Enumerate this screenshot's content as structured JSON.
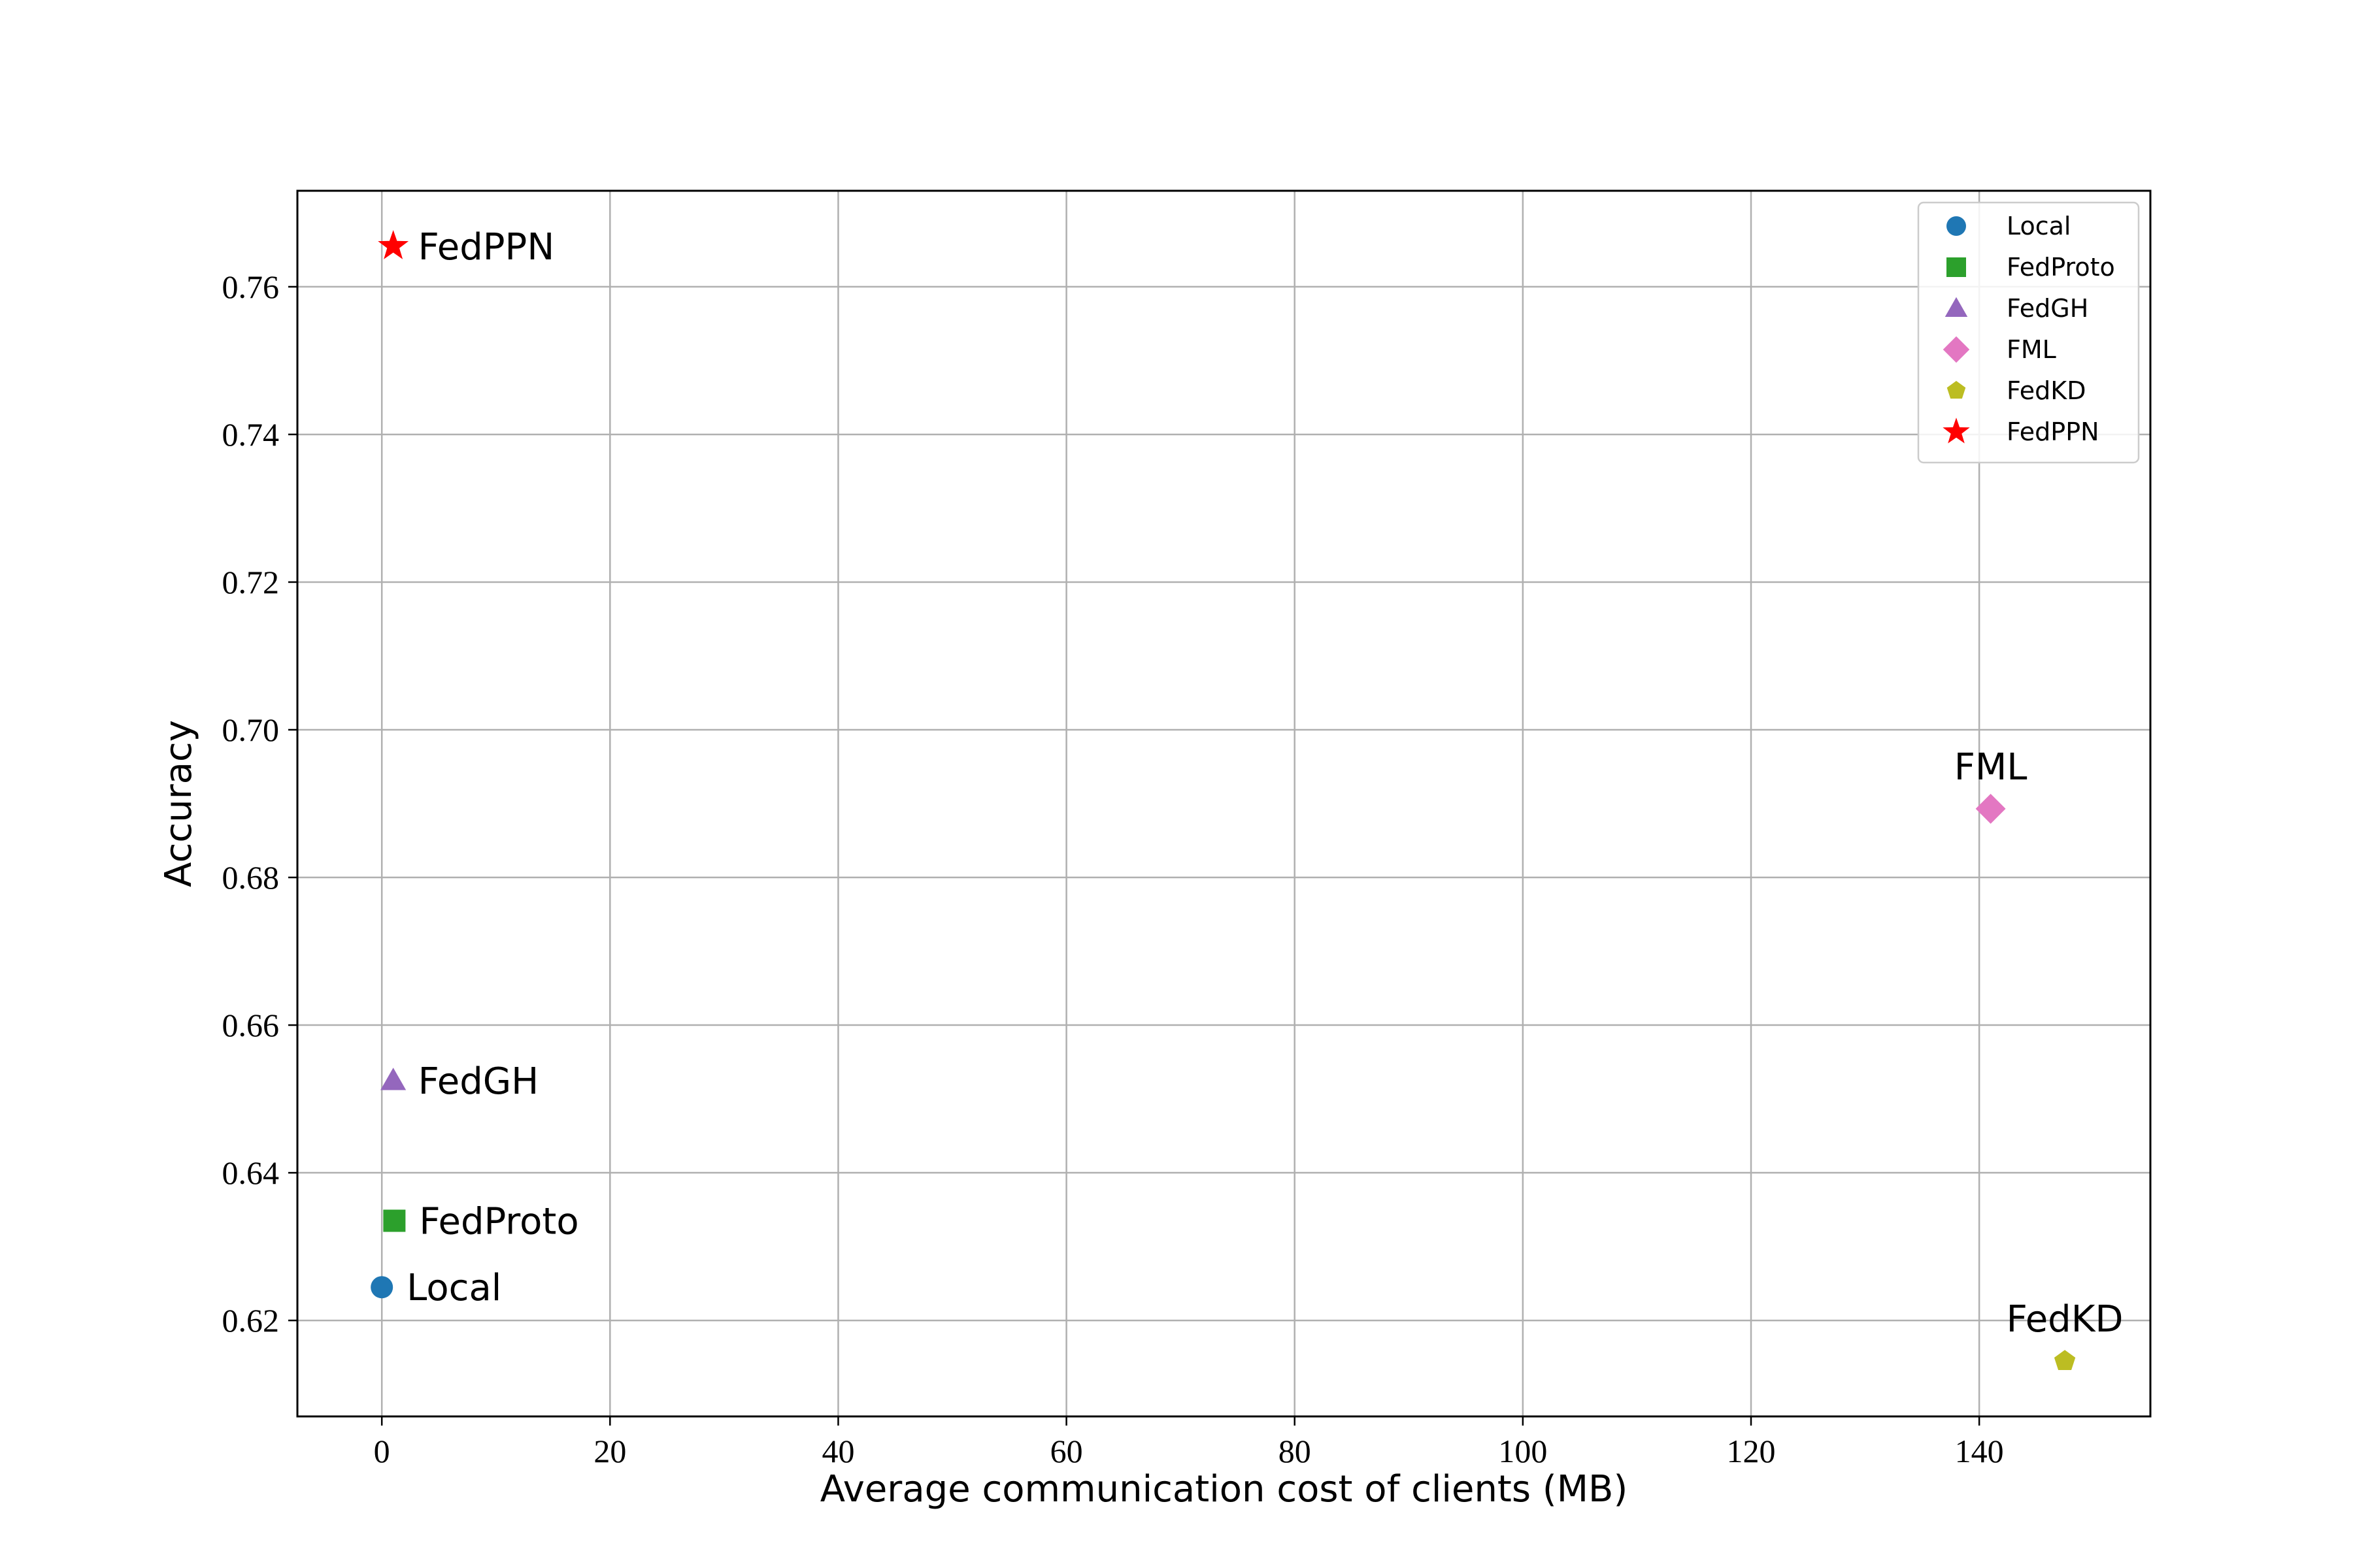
{
  "chart_data": {
    "type": "scatter",
    "title": "",
    "xlabel": "Average communication cost of clients (MB)",
    "ylabel": "Accuracy",
    "xlim": [
      -7.4,
      155.0
    ],
    "ylim": [
      0.607,
      0.773
    ],
    "xticks": [
      0,
      20,
      40,
      60,
      80,
      100,
      120,
      140
    ],
    "yticks": [
      0.62,
      0.64,
      0.66,
      0.68,
      0.7,
      0.72,
      0.74,
      0.76
    ],
    "xtick_labels": [
      "0",
      "20",
      "40",
      "60",
      "80",
      "100",
      "120",
      "140"
    ],
    "ytick_labels": [
      "0.62",
      "0.64",
      "0.66",
      "0.68",
      "0.70",
      "0.72",
      "0.74",
      "0.76"
    ],
    "grid": true,
    "legend_position": "top-right",
    "series": [
      {
        "name": "Local",
        "marker": "circle",
        "color": "#1f77b4",
        "x": 0.0,
        "y": 0.6245,
        "annotation": "Local",
        "label_side": "right"
      },
      {
        "name": "FedProto",
        "marker": "square",
        "color": "#2ca02c",
        "x": 1.1,
        "y": 0.6335,
        "annotation": "FedProto",
        "label_side": "right"
      },
      {
        "name": "FedGH",
        "marker": "triangle",
        "color": "#9467bd",
        "x": 1.0,
        "y": 0.6525,
        "annotation": "FedGH",
        "label_side": "right"
      },
      {
        "name": "FML",
        "marker": "diamond",
        "color": "#e377c2",
        "x": 141.0,
        "y": 0.6893,
        "annotation": "FML",
        "label_side": "above"
      },
      {
        "name": "FedKD",
        "marker": "pentagon",
        "color": "#bcbd22",
        "x": 147.5,
        "y": 0.6145,
        "annotation": "FedKD",
        "label_side": "above"
      },
      {
        "name": "FedPPN",
        "marker": "star",
        "color": "#ff0000",
        "x": 1.0,
        "y": 0.7655,
        "annotation": "FedPPN",
        "label_side": "right"
      }
    ]
  }
}
